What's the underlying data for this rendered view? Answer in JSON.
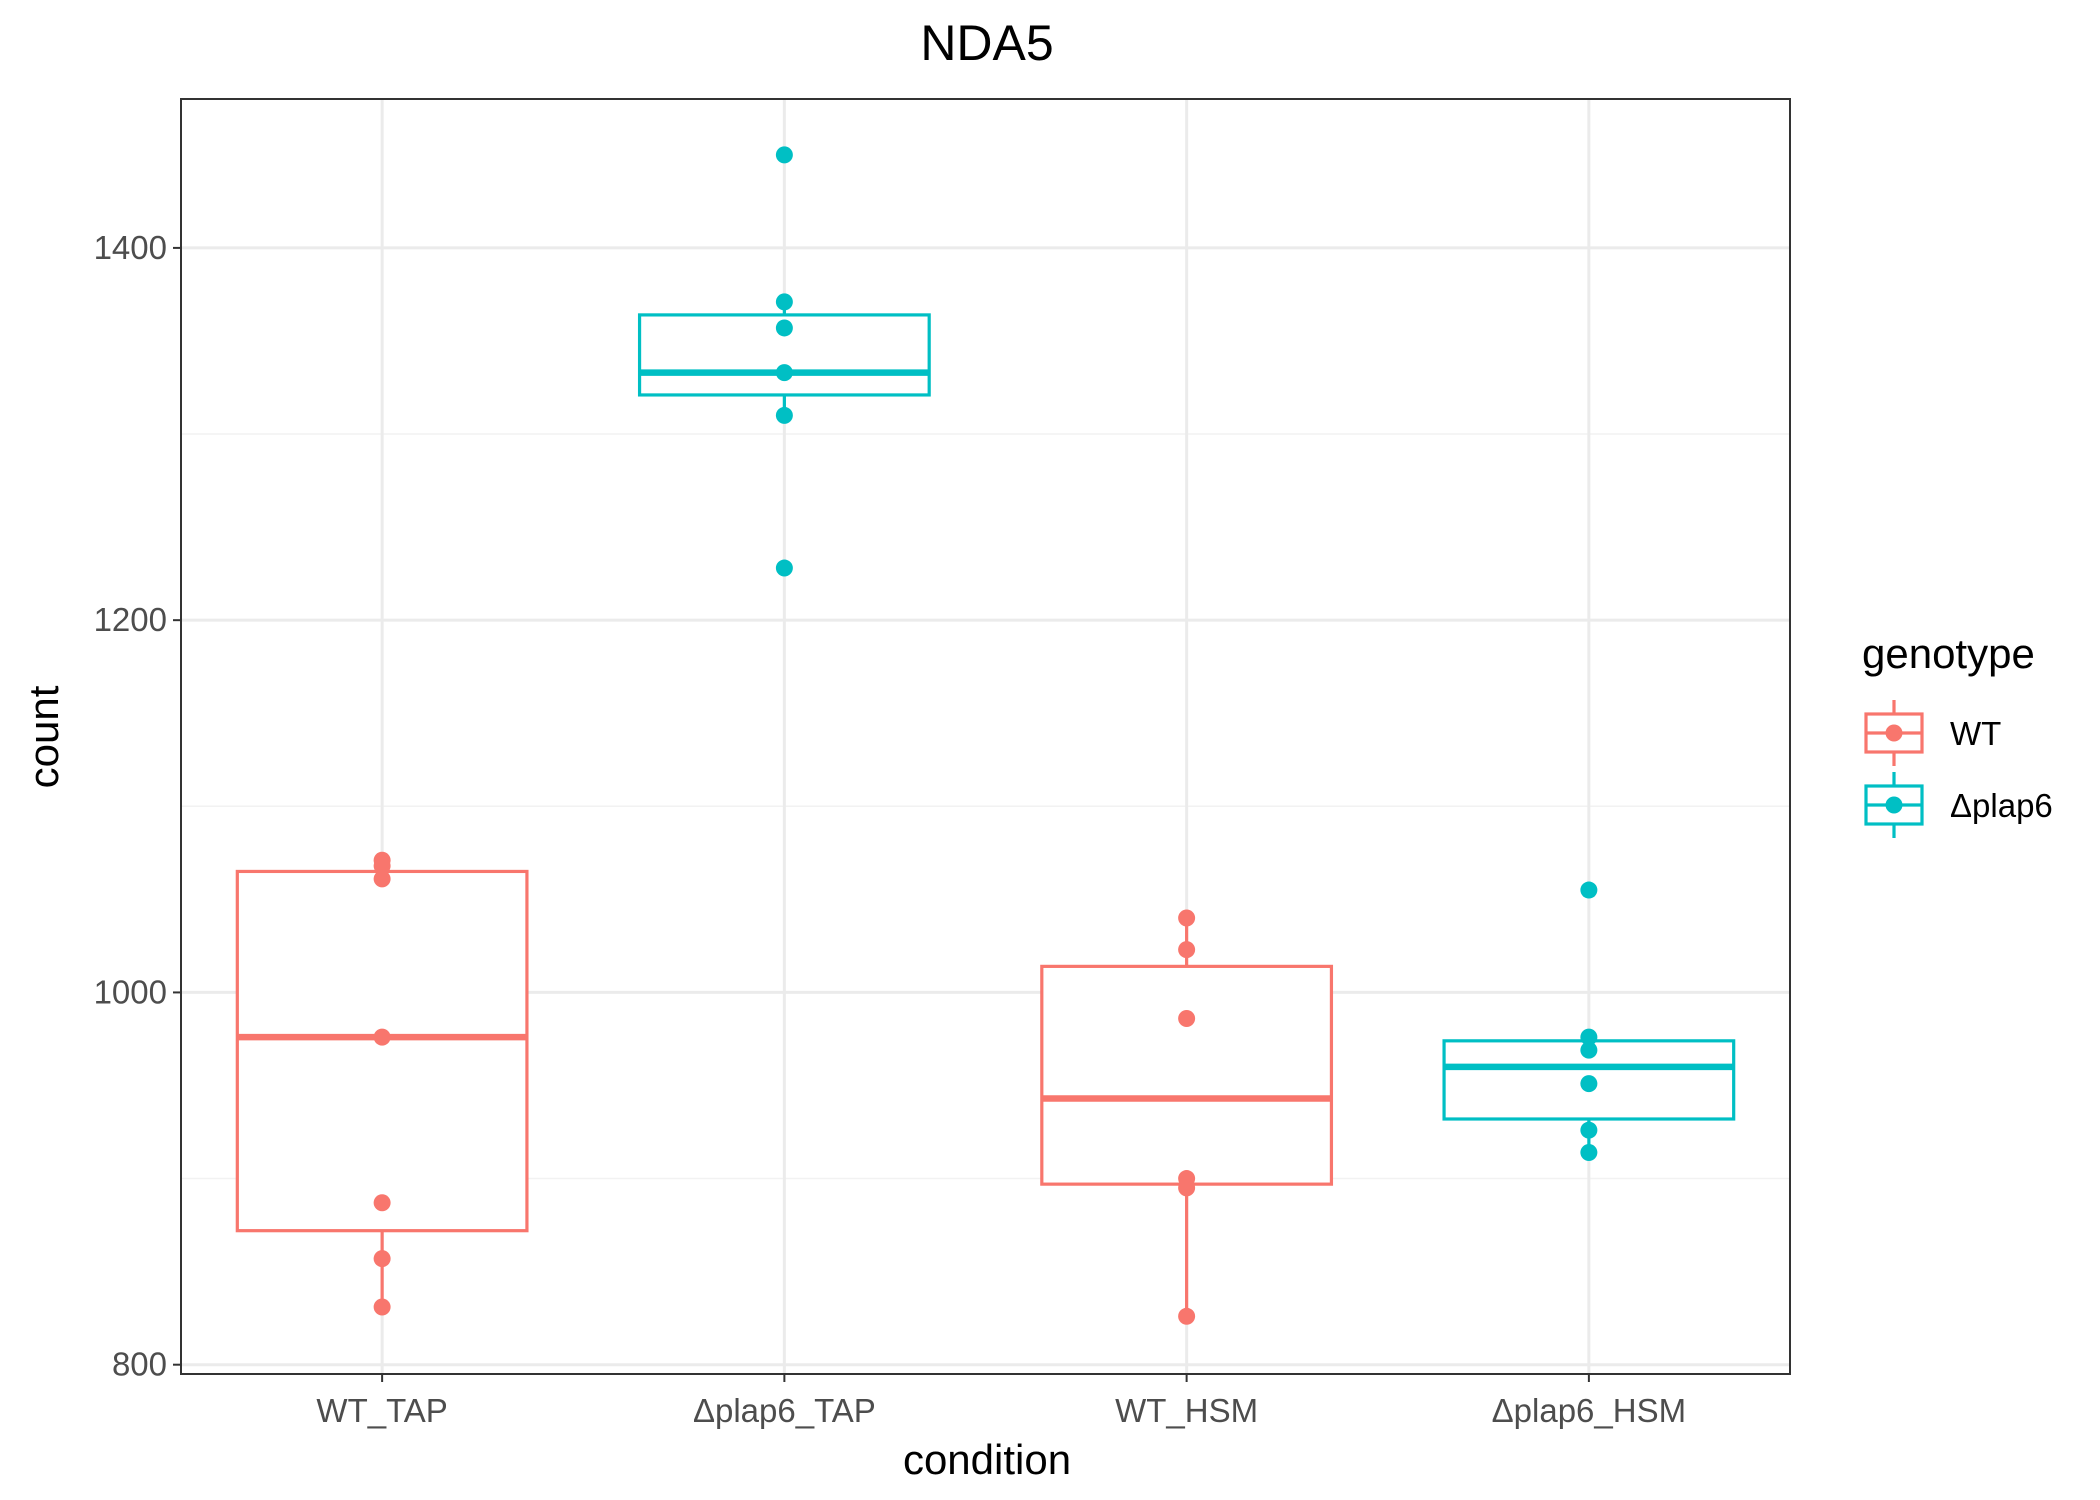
{
  "chart_data": {
    "type": "box",
    "title": "NDA5",
    "xlabel": "condition",
    "ylabel": "count",
    "categories": [
      "WT_TAP",
      "Δplap6_TAP",
      "WT_HSM",
      "Δplap6_HSM"
    ],
    "ylim": [
      795,
      1480
    ],
    "yticks": [
      800,
      1000,
      1200,
      1400
    ],
    "grid": true,
    "legend": {
      "title": "genotype",
      "position": "right",
      "entries": [
        {
          "label": "WT",
          "color": "#F8766D"
        },
        {
          "label": "Δplap6",
          "color": "#00BFC4"
        }
      ]
    },
    "series": [
      {
        "category": "WT_TAP",
        "genotype": "WT",
        "color": "#F8766D",
        "box": {
          "q1": 872,
          "median": 976,
          "q3": 1065,
          "whisker_low": 831,
          "whisker_high": 1071
        },
        "points": [
          1071,
          1068,
          1061,
          976,
          887,
          857,
          831
        ]
      },
      {
        "category": "Δplap6_TAP",
        "genotype": "Δplap6",
        "color": "#00BFC4",
        "box": {
          "q1": 1321,
          "median": 1333,
          "q3": 1364,
          "whisker_low": 1310,
          "whisker_high": 1371
        },
        "points": [
          1450,
          1371,
          1357,
          1333,
          1310,
          1228
        ]
      },
      {
        "category": "WT_HSM",
        "genotype": "WT",
        "color": "#F8766D",
        "box": {
          "q1": 897,
          "median": 943,
          "q3": 1014,
          "whisker_low": 826,
          "whisker_high": 1040
        },
        "points": [
          1040,
          1023,
          986,
          900,
          895,
          826
        ]
      },
      {
        "category": "Δplap6_HSM",
        "genotype": "Δplap6",
        "color": "#00BFC4",
        "box": {
          "q1": 932,
          "median": 960,
          "q3": 974,
          "whisker_low": 914,
          "whisker_high": 976
        },
        "points": [
          1055,
          976,
          969,
          951,
          926,
          914
        ]
      }
    ]
  }
}
